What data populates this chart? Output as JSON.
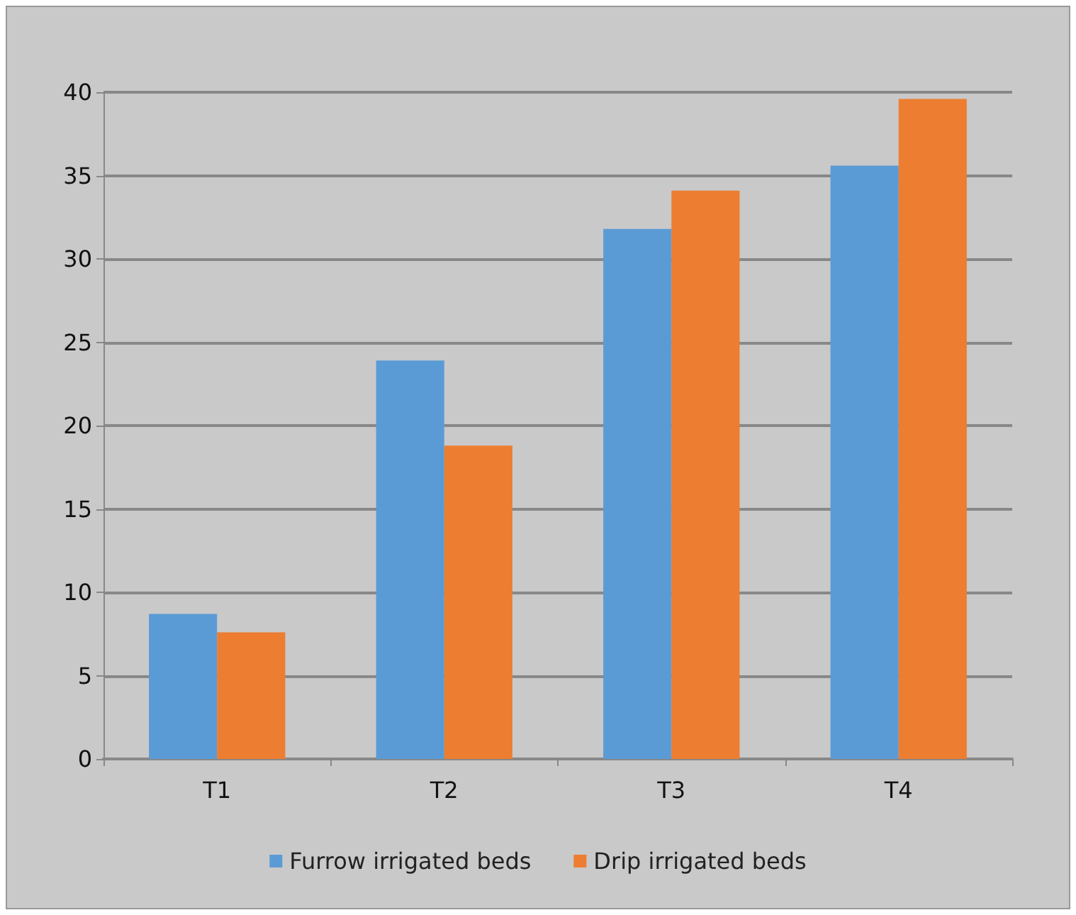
{
  "chart_data": {
    "type": "bar",
    "categories": [
      "T1",
      "T2",
      "T3",
      "T4"
    ],
    "series": [
      {
        "name": "Furrow irrigated beds",
        "color": "#5b9bd5",
        "values": [
          8.7,
          23.9,
          31.8,
          35.6
        ]
      },
      {
        "name": "Drip irrigated beds",
        "color": "#ed7d31",
        "values": [
          7.6,
          18.8,
          34.1,
          39.6
        ]
      }
    ],
    "ylim": [
      0,
      40
    ],
    "yticks": [
      0,
      5,
      10,
      15,
      20,
      25,
      30,
      35,
      40
    ],
    "grid": "y",
    "legend": "bottom"
  }
}
